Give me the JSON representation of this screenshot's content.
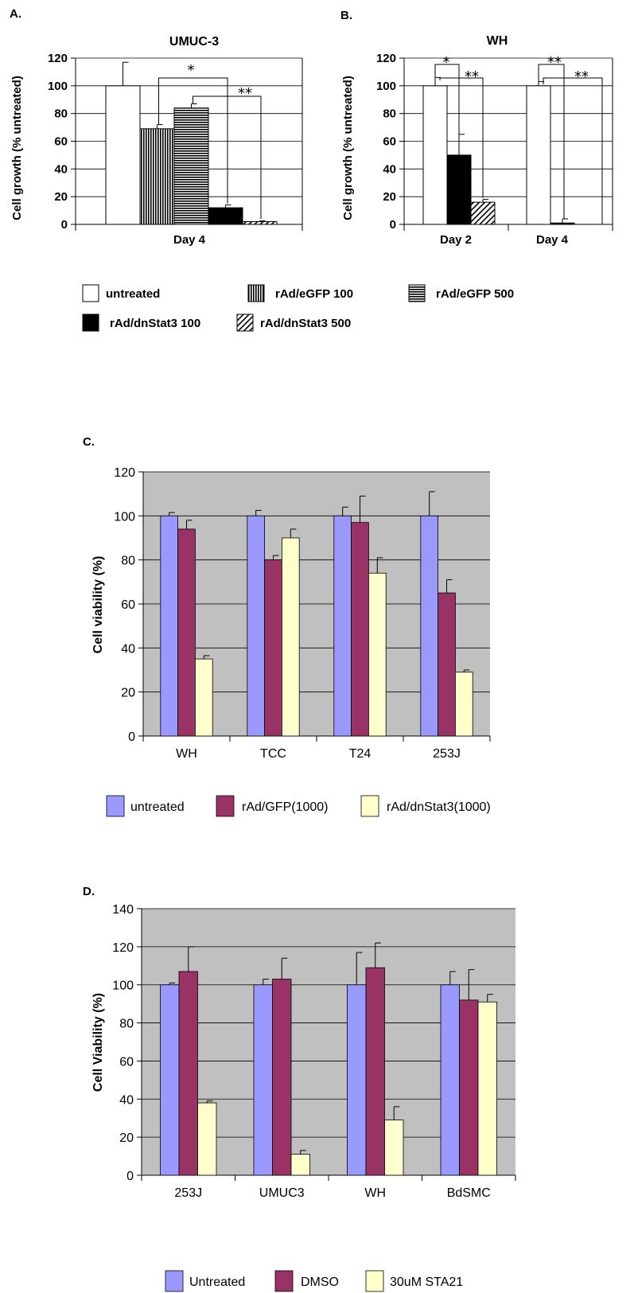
{
  "colors": {
    "untreated": "#9999ff",
    "gfp": "#993366",
    "dnstat3": "#ffffcc",
    "plot_bg": "#c0c0c0"
  },
  "panels": [
    {
      "letter": "A.",
      "title": "UMUC-3",
      "chart_data": {
        "type": "bar",
        "title": "UMUC-3",
        "ylabel": "Cell growth (% untreated)",
        "xlabel": "",
        "ylim": [
          0,
          120
        ],
        "yticks": [
          0,
          20,
          40,
          60,
          80,
          100,
          120
        ],
        "grid": true,
        "categories": [
          "Day 4"
        ],
        "series": [
          {
            "name": "untreated",
            "values": [
              100
            ],
            "errors": [
              17
            ]
          },
          {
            "name": "rAd/eGFP 100",
            "values": [
              69
            ],
            "errors": [
              3
            ]
          },
          {
            "name": "rAd/eGFP 500",
            "values": [
              84
            ],
            "errors": [
              3
            ]
          },
          {
            "name": "rAd/dnStat3 100",
            "values": [
              12
            ],
            "errors": [
              2
            ]
          },
          {
            "name": "rAd/dnStat3 500",
            "values": [
              2
            ],
            "errors": [
              0.5
            ]
          }
        ],
        "annotations": [
          "*",
          "**"
        ]
      }
    },
    {
      "letter": "B.",
      "title": "WH",
      "chart_data": {
        "type": "bar",
        "title": "WH",
        "ylabel": "Cell growth (% untreated)",
        "xlabel": "",
        "ylim": [
          0,
          120
        ],
        "yticks": [
          0,
          20,
          40,
          60,
          80,
          100,
          120
        ],
        "grid": true,
        "categories": [
          "Day 2",
          "Day 4"
        ],
        "series": [
          {
            "name": "untreated",
            "values": [
              100,
              100
            ],
            "errors": [
              6,
              3
            ]
          },
          {
            "name": "rAd/dnStat3 100",
            "values": [
              50,
              1
            ],
            "errors": [
              15,
              3
            ]
          },
          {
            "name": "rAd/dnStat3 500",
            "values": [
              16,
              null
            ],
            "errors": [
              2,
              null
            ]
          }
        ],
        "annotations": [
          "*",
          "**",
          "**",
          "**"
        ]
      }
    },
    {
      "letter": "C.",
      "chart_data": {
        "type": "bar",
        "title": "",
        "ylabel": "Cell viability (%)",
        "xlabel": "",
        "ylim": [
          0,
          120
        ],
        "yticks": [
          0,
          20,
          40,
          60,
          80,
          100,
          120
        ],
        "grid": true,
        "legend": "bottom",
        "categories": [
          "WH",
          "TCC",
          "T24",
          "253J"
        ],
        "series": [
          {
            "name": "untreated",
            "values": [
              100,
              100,
              100,
              100
            ],
            "errors": [
              1.5,
              2.5,
              4,
              11
            ]
          },
          {
            "name": "rAd/GFP(1000)",
            "values": [
              94,
              80,
              97,
              65
            ],
            "errors": [
              4,
              2,
              12,
              6
            ]
          },
          {
            "name": "rAd/dnStat3(1000)",
            "values": [
              35,
              90,
              74,
              29
            ],
            "errors": [
              1.5,
              4,
              7,
              1
            ]
          }
        ]
      }
    },
    {
      "letter": "D.",
      "chart_data": {
        "type": "bar",
        "title": "",
        "ylabel": "Cell Viability (%)",
        "xlabel": "",
        "ylim": [
          0,
          140
        ],
        "yticks": [
          0,
          20,
          40,
          60,
          80,
          100,
          120,
          140
        ],
        "grid": true,
        "legend": "bottom",
        "categories": [
          "253J",
          "UMUC3",
          "WH",
          "BdSMC"
        ],
        "series": [
          {
            "name": "Untreated",
            "values": [
              100,
              100,
              100,
              100
            ],
            "errors": [
              1,
              3,
              17,
              7
            ]
          },
          {
            "name": "DMSO",
            "values": [
              107,
              103,
              109,
              92
            ],
            "errors": [
              13,
              11,
              13,
              16
            ]
          },
          {
            "name": "30uM STA21",
            "values": [
              38,
              11,
              29,
              91
            ],
            "errors": [
              1,
              2,
              7,
              4
            ]
          }
        ]
      }
    }
  ],
  "legend_ab": [
    {
      "label": "untreated",
      "pattern": "white"
    },
    {
      "label": "rAd/eGFP 100",
      "pattern": "vertical"
    },
    {
      "label": "rAd/eGFP 500",
      "pattern": "horizontal"
    },
    {
      "label": "rAd/dnStat3 100",
      "pattern": "black"
    },
    {
      "label": "rAd/dnStat3 500",
      "pattern": "diagonal"
    }
  ]
}
